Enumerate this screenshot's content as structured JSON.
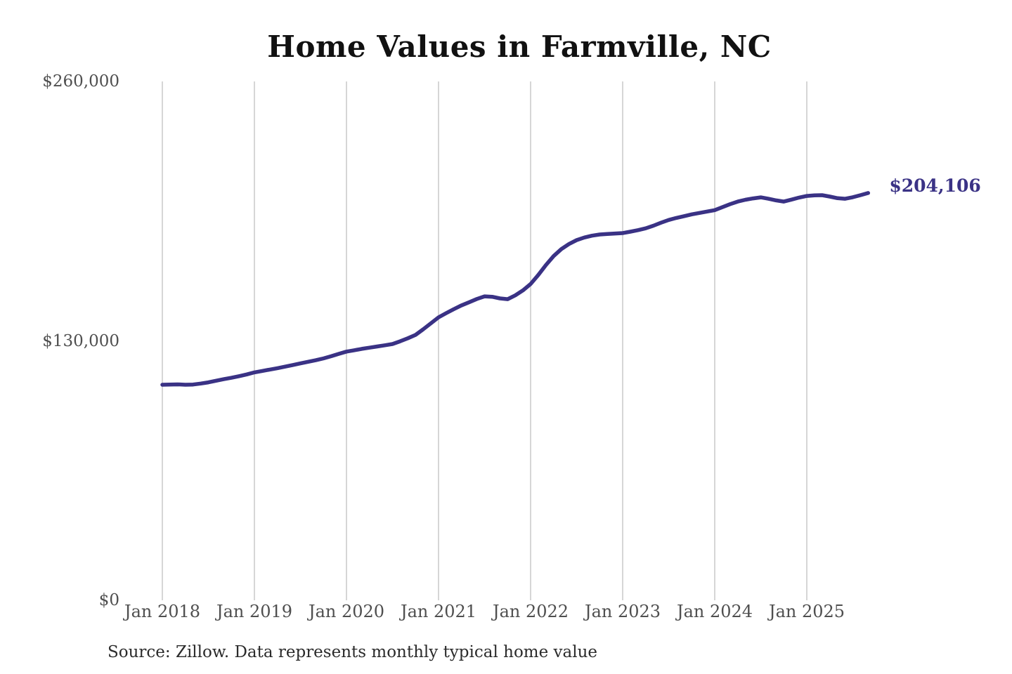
{
  "chart": {
    "title": "Home Values in Farmville, NC",
    "end_label": "$204,106",
    "source": "Source: Zillow. Data represents monthly typical home value"
  },
  "chart_data": {
    "type": "line",
    "title": "Home Values in Farmville, NC",
    "series_name": "Monthly typical home value",
    "source": "Source: Zillow. Data represents monthly typical home value",
    "frequency": "monthly",
    "start_month": "Jan 2018",
    "end_month": "Sep 2025",
    "latest_value": 204106,
    "end_label": "$204,106",
    "xlabel": "",
    "ylabel": "",
    "ylim": [
      0,
      260000
    ],
    "grid": "vertical-only",
    "legend": "none",
    "x_ticks": [
      "Jan 2018",
      "Jan 2019",
      "Jan 2020",
      "Jan 2021",
      "Jan 2022",
      "Jan 2023",
      "Jan 2024",
      "Jan 2025"
    ],
    "y_ticks": [
      {
        "label": "$0",
        "value": 0
      },
      {
        "label": "$130,000",
        "value": 130000
      },
      {
        "label": "$260,000",
        "value": 260000
      }
    ],
    "values": [
      108000,
      108100,
      108200,
      108000,
      108100,
      108600,
      109200,
      110000,
      110800,
      111500,
      112300,
      113200,
      114200,
      114900,
      115600,
      116300,
      117100,
      117900,
      118700,
      119500,
      120300,
      121200,
      122300,
      123500,
      124600,
      125300,
      126000,
      126600,
      127200,
      127800,
      128400,
      129800,
      131300,
      133000,
      135800,
      138800,
      141800,
      143900,
      145900,
      147800,
      149400,
      151000,
      152300,
      152100,
      151300,
      150900,
      152800,
      155300,
      158500,
      163000,
      168000,
      172500,
      176000,
      178500,
      180500,
      181800,
      182700,
      183300,
      183600,
      183800,
      184000,
      184700,
      185500,
      186400,
      187700,
      189200,
      190600,
      191600,
      192500,
      193400,
      194100,
      194800,
      195500,
      197000,
      198500,
      199800,
      200700,
      201400,
      201900,
      201200,
      200400,
      199800,
      200800,
      201800,
      202600,
      202900,
      203000,
      202300,
      201500,
      201200,
      202000,
      203000,
      204106
    ],
    "colors": {
      "line": "#3a3285",
      "grid": "#c9c9c9",
      "tick_text": "#4f4f4f",
      "title_text": "#111111",
      "source_text": "#2b2b2b",
      "background": "#ffffff"
    }
  }
}
